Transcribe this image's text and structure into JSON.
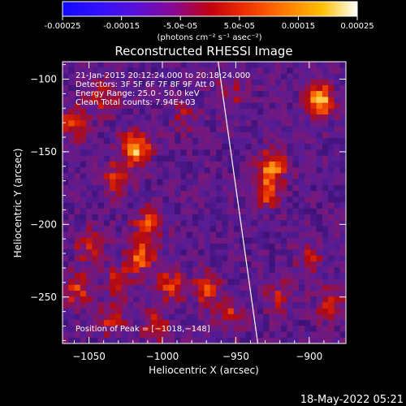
{
  "chart_data": {
    "type": "heatmap",
    "title": "Reconstructed RHESSI Image",
    "xlabel": "Heliocentric X (arcsec)",
    "ylabel": "Heliocentric Y (arcsec)",
    "colorbar": {
      "ticks": [
        "-0.00025",
        "-0.00015",
        "-5.0e-05",
        "5.0e-05",
        "0.00015",
        "0.00025"
      ],
      "tick_values": [
        -0.00025,
        -0.00015,
        -5e-05,
        5e-05,
        0.00015,
        0.00025
      ],
      "range": [
        -0.00025,
        0.00025
      ],
      "unit_label": "(photons cm⁻² s⁻¹ asec⁻²)"
    },
    "xlim": [
      -1068,
      -875
    ],
    "ylim": [
      -282,
      -88
    ],
    "x_ticks": [
      {
        "v": -1050,
        "label": "−1050"
      },
      {
        "v": -1000,
        "label": "−1000"
      },
      {
        "v": -950,
        "label": "−950"
      },
      {
        "v": -900,
        "label": "−900"
      }
    ],
    "y_ticks": [
      {
        "v": -100,
        "label": "−100"
      },
      {
        "v": -150,
        "label": "−150"
      },
      {
        "v": -200,
        "label": "−200"
      },
      {
        "v": -250,
        "label": "−250"
      }
    ],
    "info_lines": [
      "21-Jan-2015 20:12:24.000 to 20:18:24.000",
      "Detectors: 3F 5F 6F 7F 8F 9F Att 0",
      "Energy Range: 25.0 - 50.0 keV",
      "Clean    Total counts: 7.94E+03"
    ],
    "peak_text": "Position of Peak = [−1018,−148]",
    "peak": [
      -1018,
      -148
    ],
    "limb_line": [
      [
        -962,
        -88
      ],
      [
        -935,
        -282
      ]
    ],
    "sources": [
      {
        "x": -893,
        "y": -115,
        "amp": 1.0
      },
      {
        "x": -1018,
        "y": -148,
        "amp": 0.95
      },
      {
        "x": -1030,
        "y": -168,
        "amp": 0.55
      },
      {
        "x": -1060,
        "y": -130,
        "amp": 0.55
      },
      {
        "x": -1040,
        "y": -112,
        "amp": 0.45
      },
      {
        "x": -1010,
        "y": -200,
        "amp": 0.55
      },
      {
        "x": -1015,
        "y": -222,
        "amp": 0.7
      },
      {
        "x": -1050,
        "y": -215,
        "amp": 0.45
      },
      {
        "x": -1058,
        "y": -245,
        "amp": 0.55
      },
      {
        "x": -1030,
        "y": -240,
        "amp": 0.45
      },
      {
        "x": -995,
        "y": -242,
        "amp": 0.55
      },
      {
        "x": -970,
        "y": -245,
        "amp": 0.55
      },
      {
        "x": -955,
        "y": -262,
        "amp": 0.45
      },
      {
        "x": -1035,
        "y": -265,
        "amp": 0.45
      },
      {
        "x": -1005,
        "y": -270,
        "amp": 0.4
      },
      {
        "x": -925,
        "y": -160,
        "amp": 0.75
      },
      {
        "x": -930,
        "y": -178,
        "amp": 0.6
      },
      {
        "x": -900,
        "y": -225,
        "amp": 0.35
      },
      {
        "x": -920,
        "y": -250,
        "amp": 0.35
      },
      {
        "x": -885,
        "y": -255,
        "amp": 0.45
      },
      {
        "x": -955,
        "y": -110,
        "amp": 0.35
      },
      {
        "x": -985,
        "y": -125,
        "amp": 0.3
      }
    ],
    "colors": {
      "background": "#000000",
      "text": "#ffffff"
    }
  },
  "footer": {
    "date": "18-May-2022 05:21"
  }
}
